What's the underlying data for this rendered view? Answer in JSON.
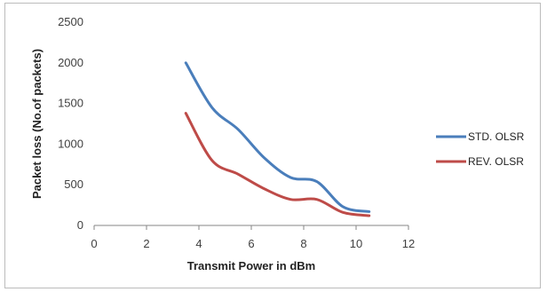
{
  "chart_data": {
    "type": "line",
    "title": "",
    "xlabel": "Transmit Power in dBm",
    "ylabel": "Packet loss (No.of packets)",
    "xlim": [
      0,
      12
    ],
    "ylim": [
      0,
      2500
    ],
    "xticks": [
      0,
      2,
      4,
      6,
      8,
      10,
      12
    ],
    "yticks": [
      0,
      500,
      1000,
      1500,
      2000,
      2500
    ],
    "grid": false,
    "legend_position": "right",
    "series": [
      {
        "name": "STD. OLSR",
        "color": "#4a7ebb",
        "x": [
          3.5,
          4.5,
          5.5,
          6.5,
          7.5,
          8.5,
          9.5,
          10.5
        ],
        "y": [
          2000,
          1450,
          1180,
          830,
          590,
          540,
          230,
          170
        ]
      },
      {
        "name": "REV. OLSR",
        "color": "#be4b48",
        "x": [
          3.5,
          4.5,
          5.5,
          6.5,
          7.5,
          8.5,
          9.5,
          10.5
        ],
        "y": [
          1380,
          800,
          630,
          450,
          320,
          320,
          160,
          120
        ]
      }
    ]
  }
}
